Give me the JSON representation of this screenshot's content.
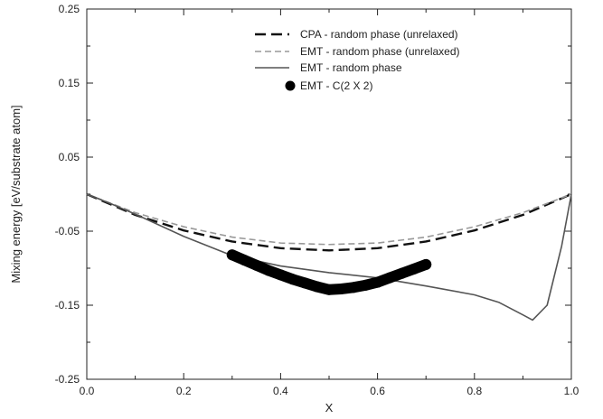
{
  "chart_data": {
    "type": "line",
    "xlabel": "X",
    "ylabel": "Mixing energy [eV/substrate atom]",
    "xlim": [
      0.0,
      1.0
    ],
    "ylim": [
      -0.25,
      0.25
    ],
    "x_ticks": [
      "0.0",
      "0.2",
      "0.4",
      "0.6",
      "0.8",
      "1.0"
    ],
    "y_ticks": [
      "0.25",
      "0.15",
      "0.05",
      "-0.05",
      "-0.15",
      "-0.25"
    ],
    "legend_position": "top-right",
    "grid": false,
    "series": [
      {
        "name": "CPA - random phase (unrelaxed)",
        "style": "dashed-bold",
        "color": "#111111",
        "x": [
          0,
          0.1,
          0.2,
          0.3,
          0.4,
          0.5,
          0.6,
          0.7,
          0.8,
          0.9,
          1.0
        ],
        "y": [
          0.0,
          -0.028,
          -0.049,
          -0.064,
          -0.073,
          -0.076,
          -0.073,
          -0.064,
          -0.049,
          -0.028,
          0.0
        ]
      },
      {
        "name": "EMT - random phase (unrelaxed)",
        "style": "dashed-thin",
        "color": "#999999",
        "x": [
          0,
          0.1,
          0.2,
          0.3,
          0.4,
          0.5,
          0.6,
          0.7,
          0.8,
          0.9,
          1.0
        ],
        "y": [
          0.0,
          -0.025,
          -0.044,
          -0.058,
          -0.066,
          -0.068,
          -0.066,
          -0.058,
          -0.044,
          -0.025,
          0.0
        ]
      },
      {
        "name": "EMT - random phase",
        "style": "solid",
        "color": "#555555",
        "x": [
          0,
          0.05,
          0.1,
          0.2,
          0.3,
          0.4,
          0.5,
          0.6,
          0.7,
          0.8,
          0.85,
          0.9,
          0.92,
          0.95,
          0.98,
          1.0
        ],
        "y": [
          0.0,
          -0.013,
          -0.027,
          -0.057,
          -0.083,
          -0.097,
          -0.106,
          -0.113,
          -0.124,
          -0.136,
          -0.146,
          -0.163,
          -0.17,
          -0.15,
          -0.07,
          0.0
        ]
      },
      {
        "name": "EMT - C(2 X 2)",
        "style": "markers",
        "color": "#000000",
        "x": [
          0.3,
          0.325,
          0.35,
          0.375,
          0.4,
          0.425,
          0.45,
          0.475,
          0.5,
          0.525,
          0.55,
          0.575,
          0.6,
          0.625,
          0.65,
          0.675,
          0.7
        ],
        "y": [
          -0.082,
          -0.089,
          -0.096,
          -0.103,
          -0.109,
          -0.115,
          -0.12,
          -0.125,
          -0.129,
          -0.128,
          -0.126,
          -0.123,
          -0.119,
          -0.113,
          -0.107,
          -0.101,
          -0.095
        ]
      }
    ]
  }
}
